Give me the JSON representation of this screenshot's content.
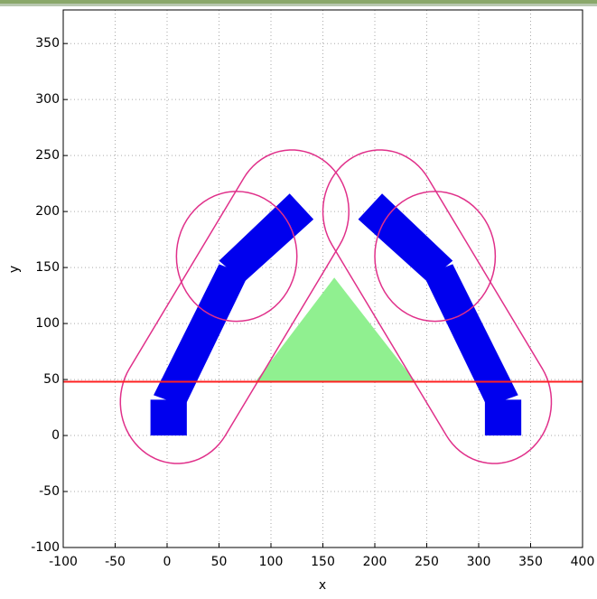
{
  "chart_data": {
    "type": "shapes",
    "xlabel": "x",
    "ylabel": "y",
    "xlim": [
      -100,
      400
    ],
    "ylim": [
      -100,
      380
    ],
    "xticks": [
      -100,
      -50,
      0,
      50,
      100,
      150,
      200,
      250,
      300,
      350,
      400
    ],
    "yticks": [
      -100,
      -50,
      0,
      50,
      100,
      150,
      200,
      250,
      300,
      350
    ],
    "grid": true,
    "series": [
      {
        "shape": "polygon",
        "color": "#90f090",
        "fill": true,
        "x": [
          85,
          161,
          239
        ],
        "values": [
          48,
          141,
          48
        ]
      },
      {
        "shape": "polygon",
        "color": "#0000ee",
        "fill": true,
        "x": [
          -16,
          19,
          19,
          -16
        ],
        "values": [
          0,
          0,
          32,
          32
        ]
      },
      {
        "shape": "polygon",
        "color": "#0000ee",
        "fill": true,
        "x": [
          -13,
          17,
          78,
          50
        ],
        "values": [
          36,
          26,
          143,
          153
        ]
      },
      {
        "shape": "polygon",
        "color": "#0000ee",
        "fill": true,
        "x": [
          50,
          74,
          141,
          118
        ],
        "values": [
          156,
          137,
          193,
          216
        ]
      },
      {
        "shape": "polygon",
        "color": "#0000ee",
        "fill": true,
        "x": [
          306,
          341,
          341,
          306
        ],
        "values": [
          0,
          0,
          32,
          32
        ]
      },
      {
        "shape": "polygon",
        "color": "#0000ee",
        "fill": true,
        "x": [
          338,
          308,
          247,
          275
        ],
        "values": [
          36,
          26,
          143,
          153
        ]
      },
      {
        "shape": "polygon",
        "color": "#0000ee",
        "fill": true,
        "x": [
          275,
          251,
          184,
          207
        ],
        "values": [
          156,
          137,
          193,
          216
        ]
      },
      {
        "shape": "capsule",
        "color": "#e0308a",
        "fill": false,
        "x": [
          10,
          120
        ],
        "values": [
          30,
          200
        ],
        "r": 55
      },
      {
        "shape": "capsule",
        "color": "#e0308a",
        "fill": false,
        "x": [
          315,
          205
        ],
        "values": [
          30,
          200
        ],
        "r": 55
      },
      {
        "shape": "circle",
        "color": "#e0308a",
        "fill": false,
        "x": [
          67
        ],
        "values": [
          160
        ],
        "r": 58
      },
      {
        "shape": "circle",
        "color": "#e0308a",
        "fill": false,
        "x": [
          258
        ],
        "values": [
          160
        ],
        "r": 58
      },
      {
        "shape": "line",
        "color": "#ff2020",
        "fill": false,
        "x": [
          -100,
          400
        ],
        "values": [
          48,
          48
        ]
      }
    ]
  }
}
